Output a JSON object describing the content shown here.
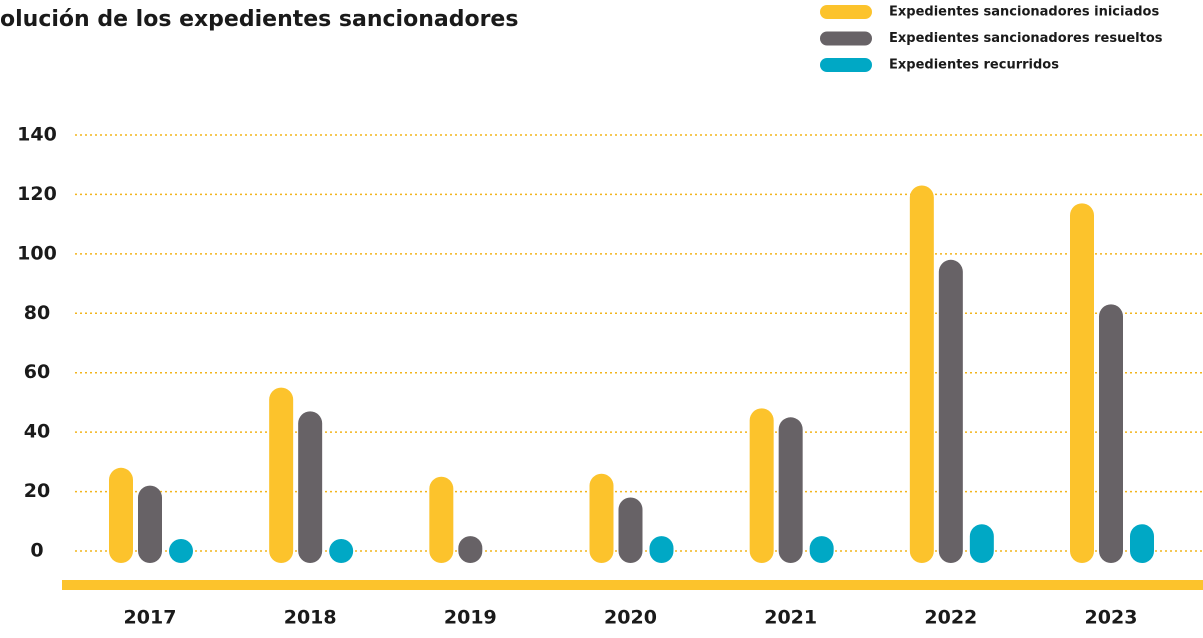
{
  "chart_data": {
    "type": "bar",
    "title": "olución de los expedientes sancionadores",
    "categories": [
      "2017",
      "2018",
      "2019",
      "2020",
      "2021",
      "2022",
      "2023"
    ],
    "series": [
      {
        "name": "Expedientes sancionadores iniciados",
        "color": "#fcc32c",
        "values": [
          28,
          55,
          25,
          26,
          48,
          123,
          117
        ]
      },
      {
        "name": "Expedientes sancionadores resueltos",
        "color": "#676266",
        "values": [
          22,
          47,
          5,
          18,
          45,
          98,
          83
        ]
      },
      {
        "name": "Expedientes recurridos",
        "color": "#00a8c5",
        "values": [
          4,
          4,
          null,
          5,
          5,
          9,
          9
        ]
      }
    ],
    "ylim": [
      0,
      140
    ],
    "yticks": [
      0,
      20,
      40,
      60,
      80,
      100,
      120,
      140
    ],
    "grid": true
  }
}
